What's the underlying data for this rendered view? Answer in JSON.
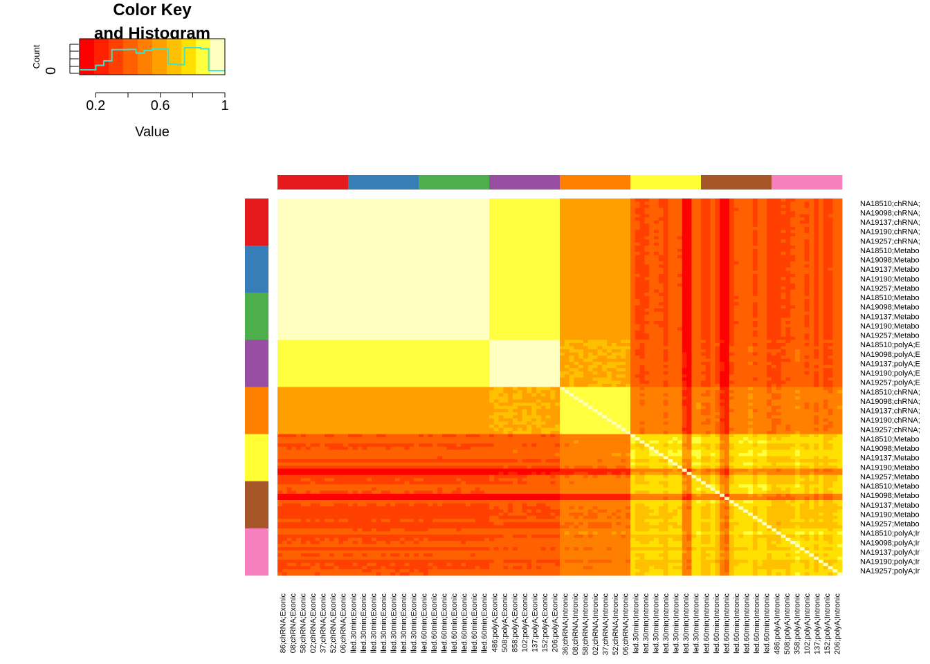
{
  "chart_data": [
    {
      "type": "histogram",
      "title": "Color Key\nand Histogram",
      "title_lines": [
        "Color Key",
        "and Histogram"
      ],
      "xlabel": "Value",
      "ylabel": "Count",
      "xlim": [
        0.1,
        1.0
      ],
      "x_ticks": [
        0.2,
        0.4,
        0.6,
        0.8,
        1.0
      ],
      "x_tick_labels": [
        "0.2",
        "0.6",
        "1"
      ],
      "y_tick_labels": [
        "0"
      ],
      "color_scale": [
        "#ff0000",
        "#ff2000",
        "#ff4000",
        "#ff6000",
        "#ff8000",
        "#ffa000",
        "#ffc000",
        "#ffe000",
        "#ffff40",
        "#ffffc0"
      ],
      "histogram_line_color": "#40e0d0",
      "histogram_bins": [
        0.1,
        0.2,
        0.25,
        0.3,
        0.35,
        0.4,
        0.45,
        0.5,
        0.55,
        0.6,
        0.65,
        0.7,
        0.75,
        0.8,
        0.85,
        0.9,
        0.95,
        1.0
      ],
      "histogram_levels": [
        0.08,
        0.25,
        0.42,
        0.85,
        0.85,
        0.86,
        0.72,
        0.82,
        0.88,
        0.88,
        0.3,
        0.28,
        0.92,
        0.92,
        0.88,
        0.05,
        0.05
      ]
    },
    {
      "type": "heatmap",
      "group_colors": [
        "#e41a1c",
        "#377eb8",
        "#4daf4a",
        "#984ea3",
        "#ff7f00",
        "#ffff33",
        "#a65628",
        "#f781bf"
      ],
      "row_labels": [
        "NA18510;chRNA;",
        "NA19098;chRNA;",
        "NA19137;chRNA;",
        "NA19190;chRNA;",
        "NA19257;chRNA;",
        "NA18510;Metabo",
        "NA19098;Metabo",
        "NA19137;Metabo",
        "NA19190;Metabo",
        "NA19257;Metabo",
        "NA18510;Metabo",
        "NA19098;Metabo",
        "NA19137;Metabo",
        "NA19190;Metabo",
        "NA19257;Metabo",
        "NA18510;polyA;E",
        "NA19098;polyA;E",
        "NA19137;polyA;E",
        "NA19190;polyA;E",
        "NA19257;polyA;E",
        "NA18510;chRNA;",
        "NA19098;chRNA;",
        "NA19137;chRNA;",
        "NA19190;chRNA;",
        "NA19257;chRNA;",
        "NA18510;Metabo",
        "NA19098;Metabo",
        "NA19137;Metabo",
        "NA19190;Metabo",
        "NA19257;Metabo",
        "NA18510;Metabo",
        "NA19098;Metabo",
        "NA19137;Metabo",
        "NA19190;Metabo",
        "NA19257;Metabo",
        "NA18510;polyA;Ir",
        "NA19098;polyA;Ir",
        "NA19137;polyA;Ir",
        "NA19190;polyA;Ir",
        "NA19257;polyA;Ir"
      ],
      "column_labels": [
        "86;chRNA;Exonic",
        "08;chRNA;Exonic",
        "58;chRNA;Exonic",
        "02;chRNA;Exonic",
        "37;chRNA;Exonic",
        "52;chRNA;Exonic",
        "06;chRNA;Exonic",
        "lled.30min;Exonic",
        "lled.30min;Exonic",
        "lled.30min;Exonic",
        "lled.30min;Exonic",
        "lled.30min;Exonic",
        "lled.30min;Exonic",
        "lled.30min;Exonic",
        "lled.60min;Exonic",
        "lled.60min;Exonic",
        "lled.60min;Exonic",
        "lled.60min;Exonic",
        "lled.60min;Exonic",
        "lled.60min;Exonic",
        "lled.60min;Exonic",
        "486;polyA;Exonic",
        "508;polyA;Exonic",
        "858;polyA;Exonic",
        "102;polyA;Exonic",
        "137;polyA;Exonic",
        "152;polyA;Exonic",
        "206;polyA;Exonic",
        "36;chRNA;Intronic",
        "08;chRNA;Intronic",
        "58;chRNA;Intronic",
        "02;chRNA;Intronic",
        "37;chRNA;Intronic",
        "52;chRNA;Intronic",
        "06;chRNA;Intronic",
        "led.30min;Intronic",
        "led.30min;Intronic",
        "led.30min;Intronic",
        "led.30min;Intronic",
        "led.30min;Intronic",
        "led.30min;Intronic",
        "led.30min;Intronic",
        "led.60min;Intronic",
        "led.60min;Intronic",
        "led.60min;Intronic",
        "led.60min;Intronic",
        "led.60min;Intronic",
        "led.60min;Intronic",
        "led.60min;Intronic",
        "486;polyA;Intronic",
        "508;polyA;Intronic",
        "358;polyA;Intronic",
        "102;polyA;Intronic",
        "137;polyA;Intronic",
        "152;polyA;Intronic",
        "206;polyA;Intronic"
      ],
      "group_block_means": [
        [
          0.96,
          0.95,
          0.95,
          0.88,
          0.62,
          0.38,
          0.38,
          0.38
        ],
        [
          0.95,
          0.96,
          0.96,
          0.88,
          0.62,
          0.38,
          0.38,
          0.38
        ],
        [
          0.95,
          0.96,
          0.96,
          0.88,
          0.62,
          0.38,
          0.38,
          0.38
        ],
        [
          0.88,
          0.88,
          0.88,
          0.94,
          0.64,
          0.4,
          0.4,
          0.4
        ],
        [
          0.62,
          0.62,
          0.62,
          0.64,
          0.86,
          0.5,
          0.5,
          0.5
        ],
        [
          0.38,
          0.38,
          0.38,
          0.4,
          0.5,
          0.78,
          0.76,
          0.74
        ],
        [
          0.38,
          0.38,
          0.38,
          0.4,
          0.5,
          0.76,
          0.78,
          0.74
        ],
        [
          0.38,
          0.38,
          0.38,
          0.4,
          0.5,
          0.74,
          0.74,
          0.76
        ]
      ]
    }
  ]
}
